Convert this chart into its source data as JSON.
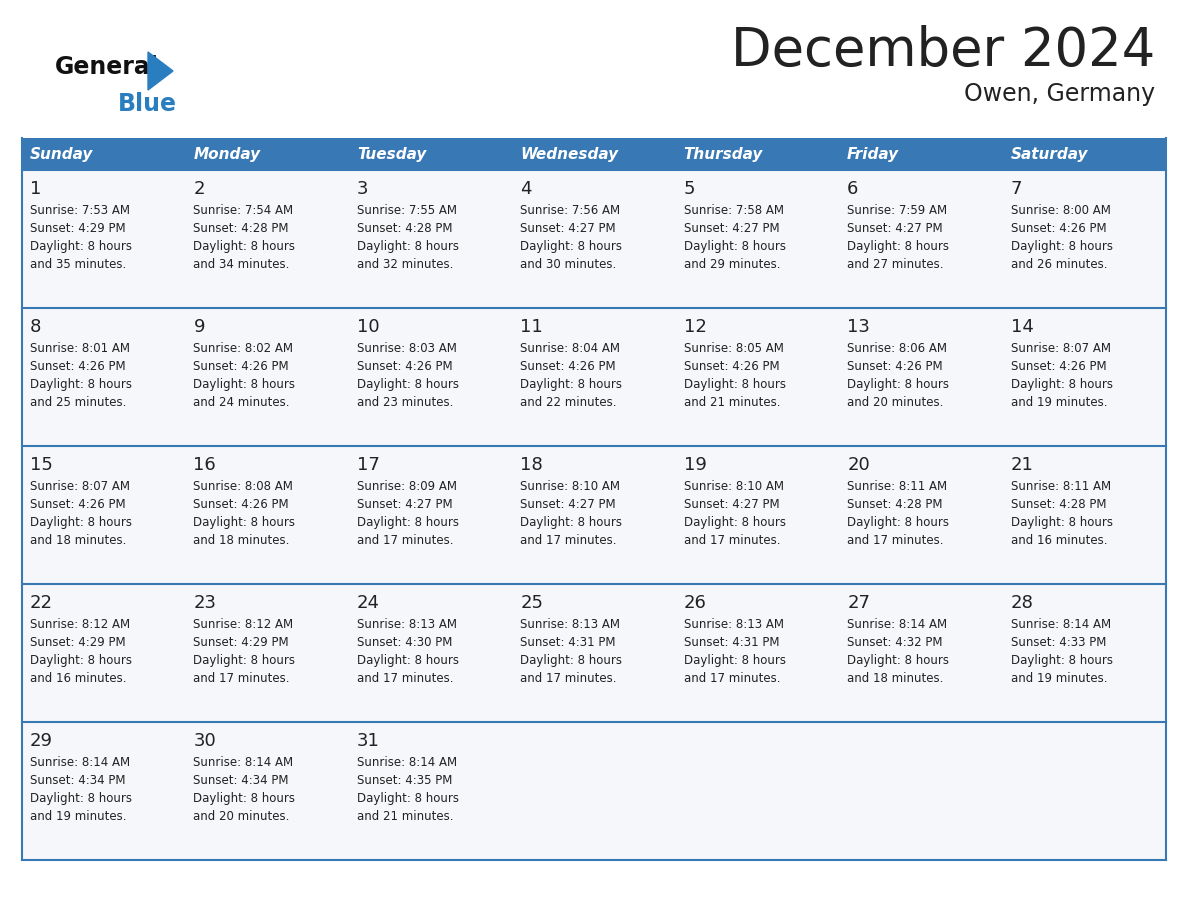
{
  "title": "December 2024",
  "subtitle": "Owen, Germany",
  "header_color": "#3878b4",
  "header_text_color": "#ffffff",
  "days_of_week": [
    "Sunday",
    "Monday",
    "Tuesday",
    "Wednesday",
    "Thursday",
    "Friday",
    "Saturday"
  ],
  "bg_color": "#ffffff",
  "row_bg": "#f5f7fa",
  "cell_separator_color": "#3878b4",
  "row_separator_color": "#3878b4",
  "text_color": "#222222",
  "logo_general_color": "#111111",
  "logo_blue_color": "#2a7ec0",
  "weeks": [
    [
      {
        "day": 1,
        "sunrise": "7:53 AM",
        "sunset": "4:29 PM",
        "daylight": "8 hours and 35 minutes."
      },
      {
        "day": 2,
        "sunrise": "7:54 AM",
        "sunset": "4:28 PM",
        "daylight": "8 hours and 34 minutes."
      },
      {
        "day": 3,
        "sunrise": "7:55 AM",
        "sunset": "4:28 PM",
        "daylight": "8 hours and 32 minutes."
      },
      {
        "day": 4,
        "sunrise": "7:56 AM",
        "sunset": "4:27 PM",
        "daylight": "8 hours and 30 minutes."
      },
      {
        "day": 5,
        "sunrise": "7:58 AM",
        "sunset": "4:27 PM",
        "daylight": "8 hours and 29 minutes."
      },
      {
        "day": 6,
        "sunrise": "7:59 AM",
        "sunset": "4:27 PM",
        "daylight": "8 hours and 27 minutes."
      },
      {
        "day": 7,
        "sunrise": "8:00 AM",
        "sunset": "4:26 PM",
        "daylight": "8 hours and 26 minutes."
      }
    ],
    [
      {
        "day": 8,
        "sunrise": "8:01 AM",
        "sunset": "4:26 PM",
        "daylight": "8 hours and 25 minutes."
      },
      {
        "day": 9,
        "sunrise": "8:02 AM",
        "sunset": "4:26 PM",
        "daylight": "8 hours and 24 minutes."
      },
      {
        "day": 10,
        "sunrise": "8:03 AM",
        "sunset": "4:26 PM",
        "daylight": "8 hours and 23 minutes."
      },
      {
        "day": 11,
        "sunrise": "8:04 AM",
        "sunset": "4:26 PM",
        "daylight": "8 hours and 22 minutes."
      },
      {
        "day": 12,
        "sunrise": "8:05 AM",
        "sunset": "4:26 PM",
        "daylight": "8 hours and 21 minutes."
      },
      {
        "day": 13,
        "sunrise": "8:06 AM",
        "sunset": "4:26 PM",
        "daylight": "8 hours and 20 minutes."
      },
      {
        "day": 14,
        "sunrise": "8:07 AM",
        "sunset": "4:26 PM",
        "daylight": "8 hours and 19 minutes."
      }
    ],
    [
      {
        "day": 15,
        "sunrise": "8:07 AM",
        "sunset": "4:26 PM",
        "daylight": "8 hours and 18 minutes."
      },
      {
        "day": 16,
        "sunrise": "8:08 AM",
        "sunset": "4:26 PM",
        "daylight": "8 hours and 18 minutes."
      },
      {
        "day": 17,
        "sunrise": "8:09 AM",
        "sunset": "4:27 PM",
        "daylight": "8 hours and 17 minutes."
      },
      {
        "day": 18,
        "sunrise": "8:10 AM",
        "sunset": "4:27 PM",
        "daylight": "8 hours and 17 minutes."
      },
      {
        "day": 19,
        "sunrise": "8:10 AM",
        "sunset": "4:27 PM",
        "daylight": "8 hours and 17 minutes."
      },
      {
        "day": 20,
        "sunrise": "8:11 AM",
        "sunset": "4:28 PM",
        "daylight": "8 hours and 17 minutes."
      },
      {
        "day": 21,
        "sunrise": "8:11 AM",
        "sunset": "4:28 PM",
        "daylight": "8 hours and 16 minutes."
      }
    ],
    [
      {
        "day": 22,
        "sunrise": "8:12 AM",
        "sunset": "4:29 PM",
        "daylight": "8 hours and 16 minutes."
      },
      {
        "day": 23,
        "sunrise": "8:12 AM",
        "sunset": "4:29 PM",
        "daylight": "8 hours and 17 minutes."
      },
      {
        "day": 24,
        "sunrise": "8:13 AM",
        "sunset": "4:30 PM",
        "daylight": "8 hours and 17 minutes."
      },
      {
        "day": 25,
        "sunrise": "8:13 AM",
        "sunset": "4:31 PM",
        "daylight": "8 hours and 17 minutes."
      },
      {
        "day": 26,
        "sunrise": "8:13 AM",
        "sunset": "4:31 PM",
        "daylight": "8 hours and 17 minutes."
      },
      {
        "day": 27,
        "sunrise": "8:14 AM",
        "sunset": "4:32 PM",
        "daylight": "8 hours and 18 minutes."
      },
      {
        "day": 28,
        "sunrise": "8:14 AM",
        "sunset": "4:33 PM",
        "daylight": "8 hours and 19 minutes."
      }
    ],
    [
      {
        "day": 29,
        "sunrise": "8:14 AM",
        "sunset": "4:34 PM",
        "daylight": "8 hours and 19 minutes."
      },
      {
        "day": 30,
        "sunrise": "8:14 AM",
        "sunset": "4:34 PM",
        "daylight": "8 hours and 20 minutes."
      },
      {
        "day": 31,
        "sunrise": "8:14 AM",
        "sunset": "4:35 PM",
        "daylight": "8 hours and 21 minutes."
      },
      null,
      null,
      null,
      null
    ]
  ]
}
